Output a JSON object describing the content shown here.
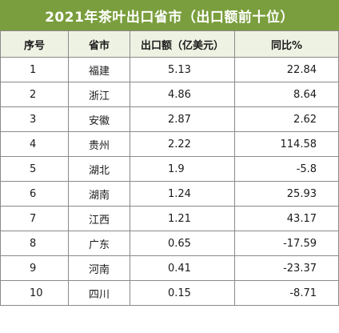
{
  "title": "2021年茶叶出口省市（出口额前十位）",
  "columns": [
    "序号",
    "省市",
    "出口额（亿美元）",
    "同比%"
  ],
  "rows": [
    {
      "rank": "1",
      "province": "福建",
      "amount": "5.13",
      "yoy": "22.84"
    },
    {
      "rank": "2",
      "province": "浙江",
      "amount": "4.86",
      "yoy": "8.64"
    },
    {
      "rank": "3",
      "province": "安徽",
      "amount": "2.87",
      "yoy": "2.62"
    },
    {
      "rank": "4",
      "province": "贵州",
      "amount": "2.22",
      "yoy": "114.58"
    },
    {
      "rank": "5",
      "province": "湖北",
      "amount": "1.9",
      "yoy": "-5.8"
    },
    {
      "rank": "6",
      "province": "湖南",
      "amount": "1.24",
      "yoy": "25.93"
    },
    {
      "rank": "7",
      "province": "江西",
      "amount": "1.21",
      "yoy": "43.17"
    },
    {
      "rank": "8",
      "province": "广东",
      "amount": "0.65",
      "yoy": "-17.59"
    },
    {
      "rank": "9",
      "province": "河南",
      "amount": "0.41",
      "yoy": "-23.37"
    },
    {
      "rank": "10",
      "province": "四川",
      "amount": "0.15",
      "yoy": "-8.71"
    }
  ],
  "colors": {
    "title_bg": "#7a9e3d",
    "header_bg": "#eef2e3",
    "border": "#8a8a8a"
  }
}
